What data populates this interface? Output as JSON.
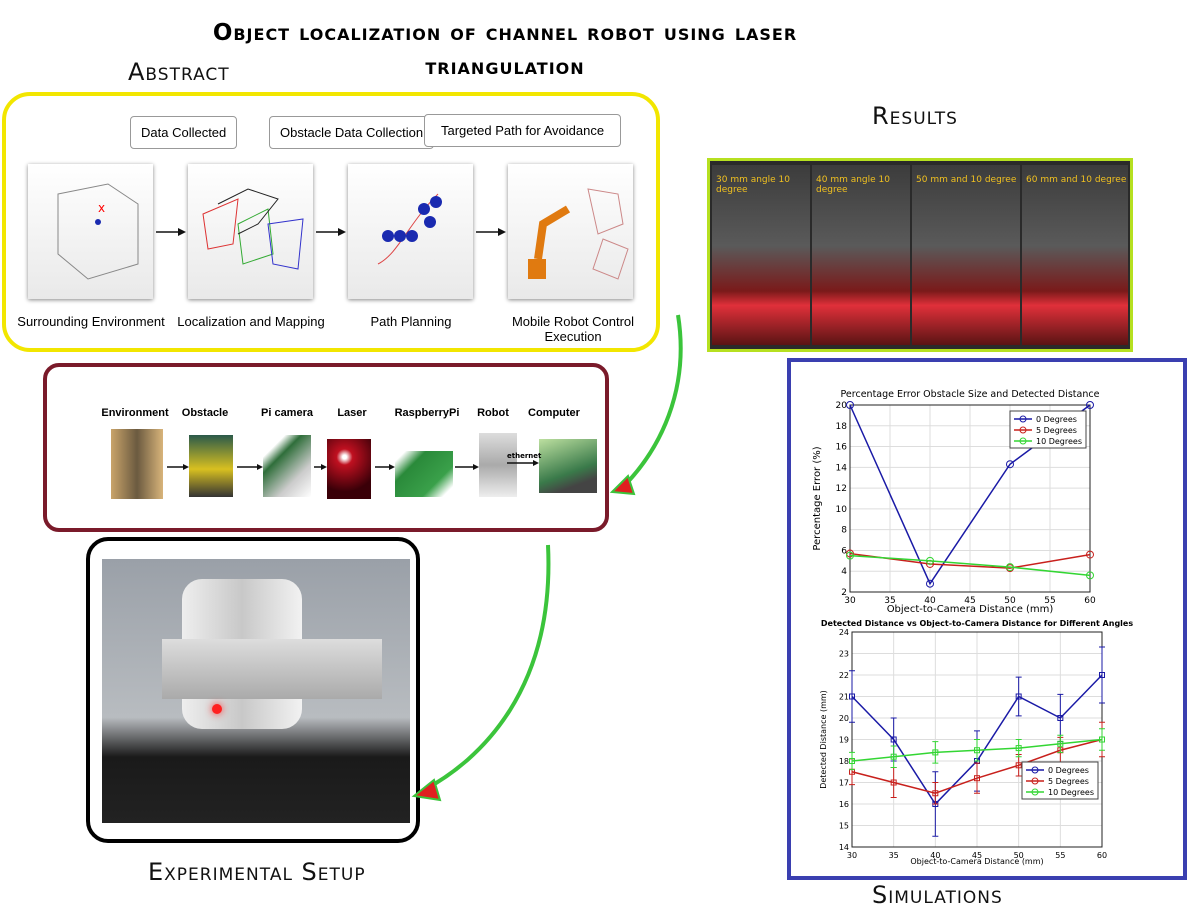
{
  "title": "Object localization of channel robot using laser triangulation",
  "headings": {
    "abstract": "Abstract",
    "results": "Results",
    "experimental_setup": "Experimental Setup",
    "simulations": "Simulations"
  },
  "abstract_diagram": {
    "top_labels": [
      "Data Collected",
      "Obstacle Data Collection",
      "Targeted Path for Avoidance"
    ],
    "stage_labels": [
      "Surrounding Environment",
      "Localization and Mapping",
      "Path Planning",
      "Mobile Robot Control Execution"
    ]
  },
  "results_photos": {
    "captions": [
      "30 mm angle 10 degree",
      "40 mm angle 10 degree",
      "50 mm and 10 degree",
      "60 mm and 10 degree"
    ]
  },
  "hardware": {
    "labels": [
      "Environment",
      "Obstacle",
      "Pi camera",
      "Laser",
      "RaspberryPi",
      "Robot",
      "Computer"
    ],
    "link_label": "ethernet"
  },
  "chart_data": [
    {
      "type": "line",
      "title": "Percentage Error Obstacle Size and Detected Distance",
      "x_label": "Object-to-Camera Distance (mm)",
      "y_label": "Percentage Error (%)",
      "x": [
        30,
        40,
        50,
        60
      ],
      "xlim": [
        30,
        60
      ],
      "xticks": [
        30,
        35,
        40,
        45,
        50,
        55,
        60
      ],
      "ylim": [
        2,
        20
      ],
      "yticks": [
        2,
        4,
        6,
        8,
        10,
        12,
        14,
        16,
        18,
        20
      ],
      "grid": true,
      "legend": "upper right",
      "series": [
        {
          "name": "0 Degrees",
          "color": "#1a1aa6",
          "values": [
            20,
            2.8,
            14.3,
            20
          ]
        },
        {
          "name": "5 Degrees",
          "color": "#c8201c",
          "values": [
            5.7,
            4.7,
            4.3,
            5.6
          ]
        },
        {
          "name": "10 Degrees",
          "color": "#33d633",
          "values": [
            5.5,
            5.0,
            4.4,
            3.6
          ]
        }
      ]
    },
    {
      "type": "errorbar",
      "title": "Detected Distance vs Object-to-Camera Distance for Different Angles",
      "x_label": "Object-to-Camera Distance (mm)",
      "y_label": "Detected Distance (mm)",
      "x": [
        30,
        35,
        40,
        45,
        50,
        55,
        60
      ],
      "xlim": [
        30,
        60
      ],
      "xticks": [
        30,
        35,
        40,
        45,
        50,
        55,
        60
      ],
      "ylim": [
        14,
        24
      ],
      "yticks": [
        14,
        15,
        16,
        17,
        18,
        19,
        20,
        21,
        22,
        23,
        24
      ],
      "grid": true,
      "legend": "lower right",
      "series": [
        {
          "name": "0 Degrees",
          "color": "#1a1aa6",
          "values": [
            21,
            19,
            16,
            18,
            21,
            20,
            22
          ],
          "errors": [
            1.2,
            1,
            1.5,
            1.4,
            0.9,
            1.1,
            1.3
          ]
        },
        {
          "name": "5 Degrees",
          "color": "#c8201c",
          "values": [
            17.5,
            17,
            16.5,
            17.2,
            17.8,
            18.5,
            19
          ],
          "errors": [
            0.6,
            0.7,
            0.5,
            0.7,
            0.5,
            0.6,
            0.8
          ]
        },
        {
          "name": "10 Degrees",
          "color": "#33d633",
          "values": [
            18,
            18.2,
            18.4,
            18.5,
            18.6,
            18.8,
            19
          ],
          "errors": [
            0.4,
            0.5,
            0.5,
            0.5,
            0.4,
            0.4,
            0.5
          ]
        }
      ]
    }
  ]
}
